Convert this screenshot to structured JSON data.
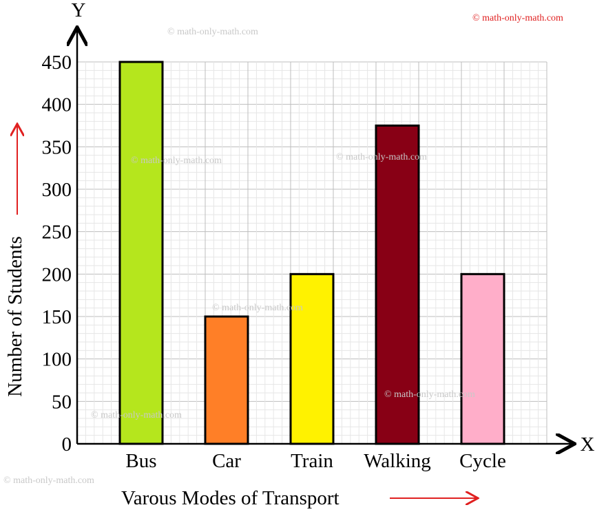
{
  "watermark_top_right": "© math-only-math.com",
  "watermark": "© math-only-math.com",
  "colors": {
    "accent_red": "#e02020",
    "grid_major": "#bdbdbd",
    "grid_minor": "#e6e6e6"
  },
  "chart_data": {
    "type": "bar",
    "title": "",
    "xlabel": "Varous Modes of Transport",
    "ylabel": "Number of Students",
    "x_axis_letter": "X",
    "y_axis_letter": "Y",
    "categories": [
      "Bus",
      "Car",
      "Train",
      "Walking",
      "Cycle"
    ],
    "values": [
      450,
      150,
      200,
      375,
      200
    ],
    "bar_colors": [
      "#b5e61d",
      "#ff7f27",
      "#fff200",
      "#880015",
      "#ffaec9"
    ],
    "ylim": [
      0,
      450
    ],
    "yticks": [
      0,
      50,
      100,
      150,
      200,
      250,
      300,
      350,
      400,
      450
    ],
    "grid": true,
    "legend": "none"
  }
}
